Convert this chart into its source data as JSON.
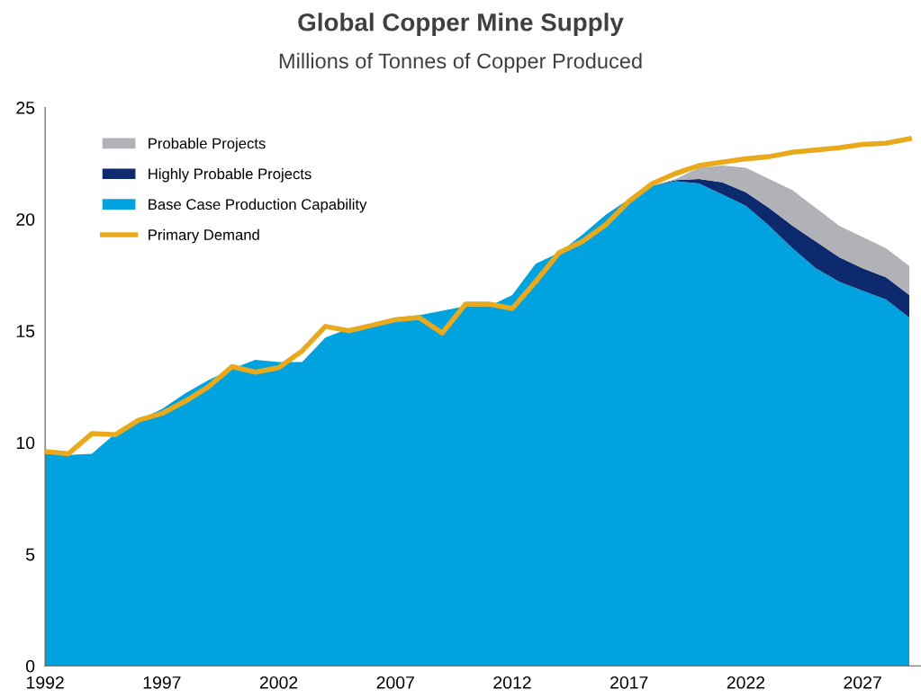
{
  "chart_data": {
    "type": "area",
    "stacked": true,
    "title": "Global Copper Mine Supply",
    "subtitle": "Millions of Tonnes of Copper Produced",
    "x": [
      1992,
      1993,
      1994,
      1995,
      1996,
      1997,
      1998,
      1999,
      2000,
      2001,
      2002,
      2003,
      2004,
      2005,
      2006,
      2007,
      2008,
      2009,
      2010,
      2011,
      2012,
      2013,
      2014,
      2015,
      2016,
      2017,
      2018,
      2019,
      2020,
      2021,
      2022,
      2023,
      2024,
      2025,
      2026,
      2027,
      2028,
      2029
    ],
    "series": [
      {
        "name": "Base Case Production Capability",
        "color": "#00a3e0",
        "values": [
          9.5,
          9.45,
          9.5,
          10.4,
          11.0,
          11.5,
          12.2,
          12.8,
          13.3,
          13.7,
          13.6,
          13.6,
          14.7,
          15.1,
          15.3,
          15.6,
          15.7,
          15.9,
          16.1,
          16.1,
          16.6,
          18.0,
          18.5,
          19.3,
          20.2,
          20.9,
          21.5,
          21.7,
          21.6,
          21.1,
          20.6,
          19.7,
          18.7,
          17.8,
          17.2,
          16.8,
          16.4,
          15.6
        ]
      },
      {
        "name": "Highly Probable Projects",
        "color": "#0d2a6e",
        "values": [
          0,
          0,
          0,
          0,
          0,
          0,
          0,
          0,
          0,
          0,
          0,
          0,
          0,
          0,
          0,
          0,
          0,
          0,
          0,
          0,
          0,
          0,
          0,
          0,
          0,
          0,
          0,
          0.05,
          0.2,
          0.55,
          0.6,
          0.8,
          1.0,
          1.2,
          1.1,
          1.0,
          1.0,
          1.0
        ]
      },
      {
        "name": "Probable Projects",
        "color": "#b0b2b8",
        "values": [
          0,
          0,
          0,
          0,
          0,
          0,
          0,
          0,
          0,
          0,
          0,
          0,
          0,
          0,
          0,
          0,
          0,
          0,
          0,
          0,
          0,
          0,
          0,
          0,
          0,
          0,
          0,
          0.05,
          0.5,
          0.75,
          1.1,
          1.3,
          1.6,
          1.5,
          1.4,
          1.4,
          1.3,
          1.3
        ]
      },
      {
        "name": "Primary Demand",
        "type": "line",
        "color": "#e8a91c",
        "values": [
          9.6,
          9.5,
          10.4,
          10.35,
          11.0,
          11.3,
          11.85,
          12.5,
          13.4,
          13.15,
          13.35,
          14.1,
          15.2,
          15.0,
          15.25,
          15.5,
          15.6,
          14.9,
          16.2,
          16.2,
          16.0,
          17.2,
          18.5,
          19.0,
          19.75,
          20.8,
          21.6,
          22.05,
          22.4,
          22.55,
          22.7,
          22.8,
          23.0,
          23.1,
          23.2,
          23.35,
          23.4,
          23.6
        ]
      }
    ],
    "xlim": [
      1992,
      2029.5
    ],
    "xticks": [
      1992,
      1997,
      2002,
      2007,
      2012,
      2017,
      2022,
      2027
    ],
    "ylim": [
      0,
      25
    ],
    "yticks": [
      0,
      5,
      10,
      15,
      20,
      25
    ],
    "legend": "top left",
    "grid": false
  }
}
